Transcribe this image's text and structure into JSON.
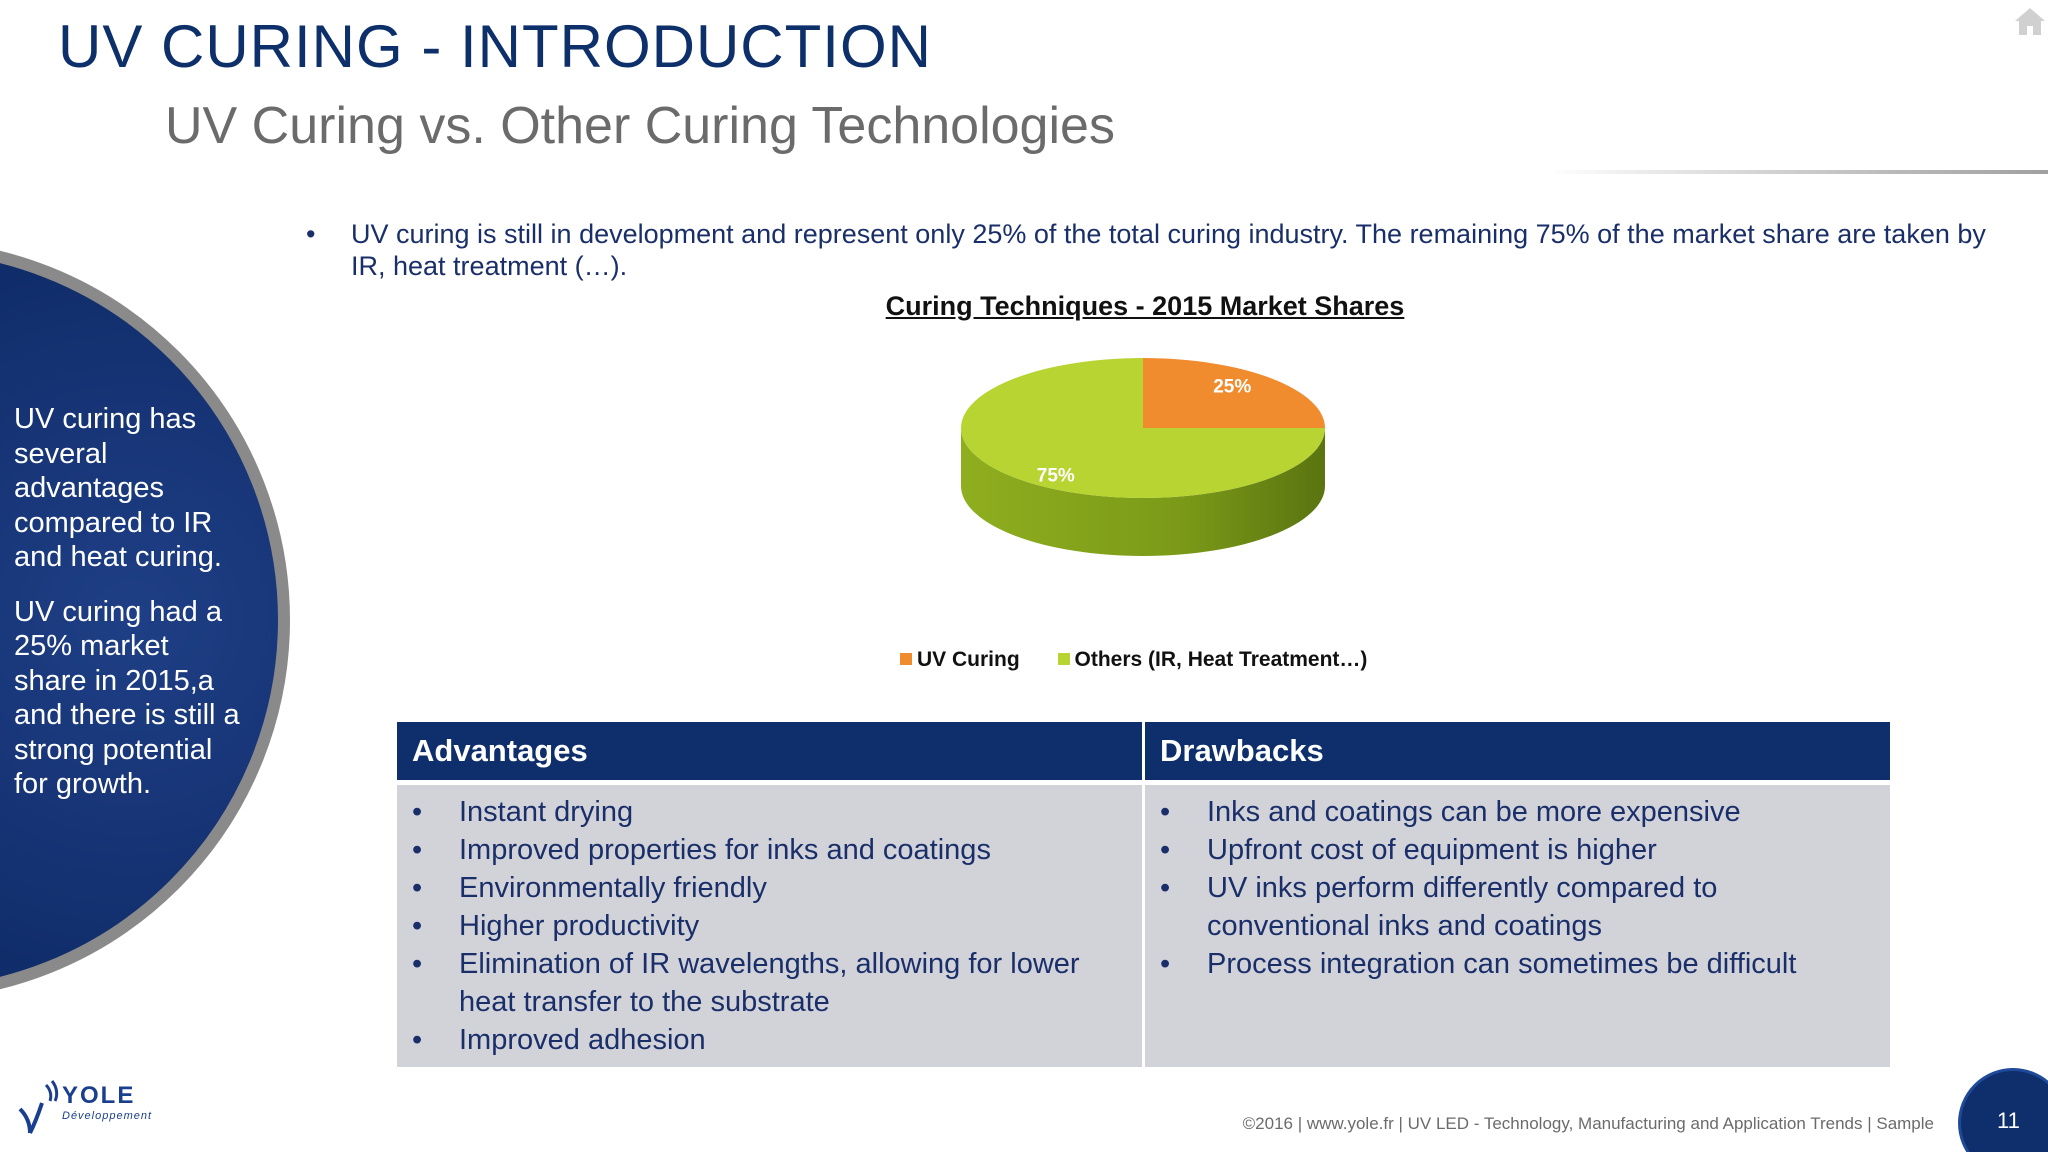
{
  "header": {
    "title": "UV CURING - INTRODUCTION",
    "subtitle": "UV Curing vs. Other Curing Technologies"
  },
  "icons": {
    "home": "home-icon",
    "bullet": "•"
  },
  "sidebar": {
    "paragraphs": [
      "UV curing has several advantages compared to IR and heat curing.",
      "UV curing had a 25% market share in 2015,a and there is still a strong potential for growth."
    ]
  },
  "intro": {
    "text": "UV curing is still in development and represent only 25% of the total curing industry. The remaining 75% of the market share are taken by IR, heat treatment (…)."
  },
  "chart_data": {
    "type": "pie",
    "title": "Curing Techniques - 2015 Market Shares",
    "categories": [
      "UV Curing",
      "Others (IR, Heat Treatment…)"
    ],
    "values": [
      25,
      75
    ],
    "data_labels": [
      "25%",
      "75%"
    ],
    "colors": [
      "#f08c2e",
      "#b8d432"
    ],
    "legend_position": "bottom"
  },
  "table": {
    "advantages": {
      "heading": "Advantages",
      "items": [
        "Instant drying",
        "Improved properties for inks and coatings",
        "Environmentally friendly",
        "Higher productivity",
        "Elimination of IR wavelengths, allowing for lower heat transfer to the substrate",
        "Improved adhesion"
      ]
    },
    "drawbacks": {
      "heading": "Drawbacks",
      "items": [
        "Inks and coatings can be more expensive",
        "Upfront cost of equipment is higher",
        "UV inks perform differently compared to conventional inks and coatings",
        "Process integration can sometimes be difficult"
      ]
    }
  },
  "logo": {
    "name": "YOLE",
    "tagline": "Développement"
  },
  "footer": {
    "text": "©2016 | www.yole.fr | UV LED - Technology, Manufacturing and Application Trends | Sample",
    "page_number": "11"
  },
  "colors": {
    "brand_navy": "#0e2f6b",
    "uv_orange": "#f08c2e",
    "others_green": "#b8d432",
    "table_body": "#d2d3d9"
  }
}
